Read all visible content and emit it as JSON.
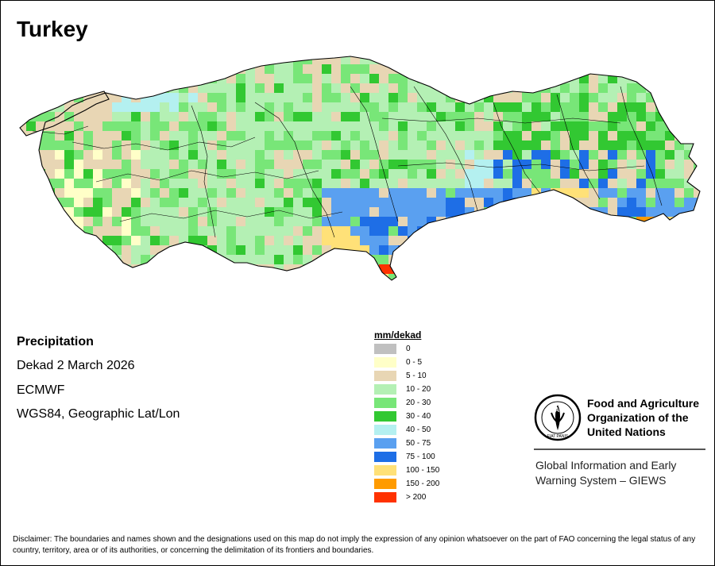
{
  "title": "Turkey",
  "info": {
    "product": "Precipitation",
    "period": "Dekad 2 March 2026",
    "model": "ECMWF",
    "projection": "WGS84, Geographic Lat/Lon"
  },
  "legend": {
    "title": "mm/dekad",
    "classes": [
      {
        "label": "0",
        "color": "#c0c0c0"
      },
      {
        "label": "0 - 5",
        "color": "#ffffc8"
      },
      {
        "label": "5 - 10",
        "color": "#e8d6b4"
      },
      {
        "label": "10 - 20",
        "color": "#b4f0b4"
      },
      {
        "label": "20 - 30",
        "color": "#78e678"
      },
      {
        "label": "30 - 40",
        "color": "#32c832"
      },
      {
        "label": "40 - 50",
        "color": "#b4f0f0"
      },
      {
        "label": "50 - 75",
        "color": "#5aa0f0"
      },
      {
        "label": "75 - 100",
        "color": "#1e6ee6"
      },
      {
        "label": "100 - 150",
        "color": "#ffe178"
      },
      {
        "label": "150 - 200",
        "color": "#ff9b00"
      },
      {
        "label": "> 200",
        "color": "#ff3200"
      }
    ]
  },
  "map": {
    "country": "Turkey",
    "rainfall_pattern": "Mostly 10 - 20 and 20 - 30 mm/dekad over central and northern Turkey; 0 - 10 mm/dekad in parts of the west and northwest; 50 - 100 mm/dekad across the southeast; 100 - 200 mm/dekad along the southern coast and the far southeast; > 200 mm/dekad at one spot on the Hatay coast."
  },
  "organization": {
    "name_lines": [
      "Food and Agriculture",
      "Organization of the",
      "United Nations"
    ],
    "logo_text": "FAO",
    "logo_motto": "FIAT PANIS",
    "system_lines": [
      "Global Information and Early",
      "Warning System – GIEWS"
    ]
  },
  "disclaimer": "Disclaimer: The boundaries and names shown and the designations used on this map do not imply the expression of any opinion whatsoever on the part of FAO concerning the legal status of any country, territory, area or of its authorities, or concerning the delimitation of its frontiers and boundaries."
}
